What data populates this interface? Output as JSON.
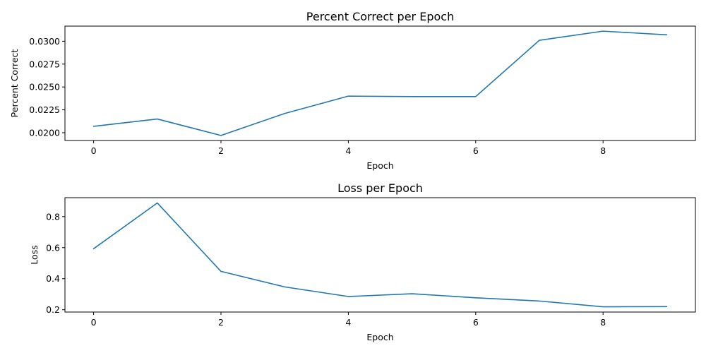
{
  "chart_data": [
    {
      "type": "line",
      "title": "Percent Correct per Epoch",
      "xlabel": "Epoch",
      "ylabel": "Percent Correct",
      "x": [
        0,
        1,
        2,
        3,
        4,
        5,
        6,
        7,
        8,
        9
      ],
      "series": [
        {
          "values": [
            0.0207,
            0.0215,
            0.0197,
            0.0221,
            0.024,
            0.02395,
            0.02395,
            0.0301,
            0.0311,
            0.0307
          ]
        }
      ],
      "xlim": [
        -0.45,
        9.45
      ],
      "ylim": [
        0.01915,
        0.03165
      ],
      "xticks": [
        0,
        2,
        4,
        6,
        8
      ],
      "xtick_labels": [
        "0",
        "2",
        "4",
        "6",
        "8"
      ],
      "yticks": [
        0.02,
        0.0225,
        0.025,
        0.0275,
        0.03
      ],
      "ytick_labels": [
        "0.0200",
        "0.0225",
        "0.0250",
        "0.0275",
        "0.0300"
      ],
      "grid": false,
      "color": "#1f77b4"
    },
    {
      "type": "line",
      "title": "Loss per Epoch",
      "xlabel": "Epoch",
      "ylabel": "Loss",
      "x": [
        0,
        1,
        2,
        3,
        4,
        5,
        6,
        7,
        8,
        9
      ],
      "series": [
        {
          "values": [
            0.593,
            0.888,
            0.447,
            0.347,
            0.285,
            0.303,
            0.277,
            0.256,
            0.219,
            0.22
          ]
        }
      ],
      "xlim": [
        -0.45,
        9.45
      ],
      "ylim": [
        0.185,
        0.922
      ],
      "xticks": [
        0,
        2,
        4,
        6,
        8
      ],
      "xtick_labels": [
        "0",
        "2",
        "4",
        "6",
        "8"
      ],
      "yticks": [
        0.2,
        0.4,
        0.6,
        0.8
      ],
      "ytick_labels": [
        "0.2",
        "0.4",
        "0.6",
        "0.8"
      ],
      "grid": false,
      "color": "#1f77b4"
    }
  ]
}
